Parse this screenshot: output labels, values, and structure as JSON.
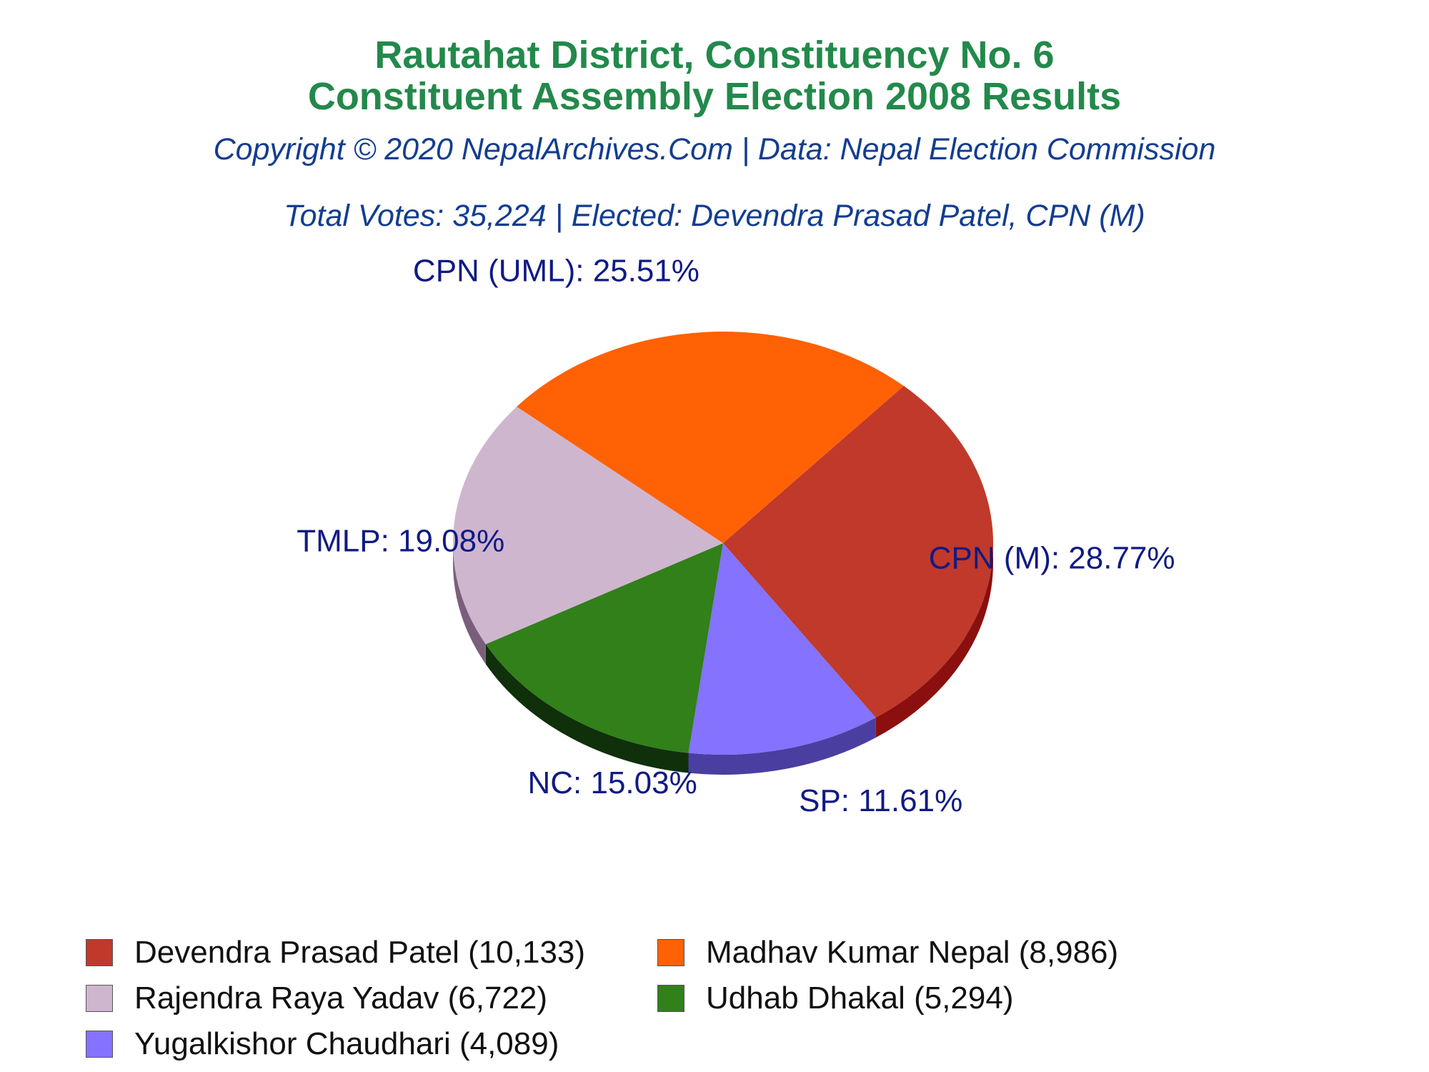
{
  "header": {
    "title_line1": "Rautahat District, Constituency No. 6",
    "title_line2": "Constituent Assembly Election 2008 Results",
    "copyright": "Copyright © 2020 NepalArchives.Com | Data: Nepal Election Commission",
    "summary": "Total Votes: 35,224 | Elected: Devendra Prasad Patel, CPN (M)"
  },
  "chart_data": {
    "type": "pie",
    "title": "Rautahat District, Constituency No. 6 Constituent Assembly Election 2008 Results",
    "total_votes": 35224,
    "slices": [
      {
        "party": "CPN (M)",
        "label": "CPN (M): 28.77%",
        "percent": 28.77,
        "candidate": "Devendra Prasad Patel",
        "votes": 10133,
        "legend": "Devendra Prasad Patel (10,133)",
        "color": "#c0392b",
        "side_color": "#8b0f0f"
      },
      {
        "party": "SP",
        "label": "SP: 11.61%",
        "percent": 11.61,
        "candidate": "Yugalkishor Chaudhari",
        "votes": 4089,
        "legend": "Yugalkishor Chaudhari (4,089)",
        "color": "#8572fe",
        "side_color": "#4a3ea0"
      },
      {
        "party": "NC",
        "label": "NC: 15.03%",
        "percent": 15.03,
        "candidate": "Udhab Dhakal",
        "votes": 5294,
        "legend": "Udhab Dhakal (5,294)",
        "color": "#31801a",
        "side_color": "#0f300a"
      },
      {
        "party": "TMLP",
        "label": "TMLP: 19.08%",
        "percent": 19.08,
        "candidate": "Rajendra Raya Yadav",
        "votes": 6722,
        "legend": "Rajendra Raya Yadav (6,722)",
        "color": "#cfb6cf",
        "side_color": "#7a5f7d"
      },
      {
        "party": "CPN (UML)",
        "label": "CPN (UML): 25.51%",
        "percent": 25.51,
        "candidate": "Madhav Kumar Nepal",
        "votes": 8986,
        "legend": "Madhav Kumar Nepal (8,986)",
        "color": "#ff6104",
        "side_color": "#a80000"
      }
    ],
    "legend_order": [
      0,
      4,
      3,
      2,
      1
    ]
  }
}
